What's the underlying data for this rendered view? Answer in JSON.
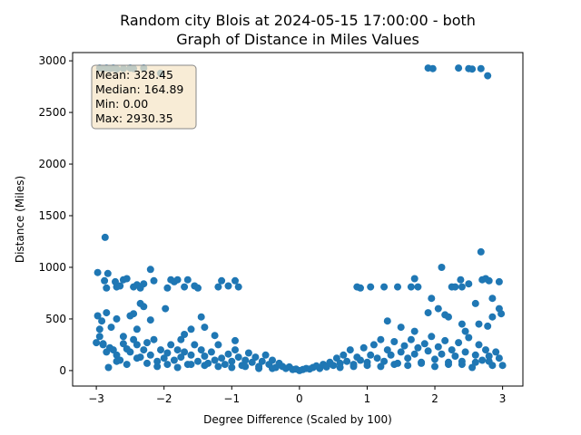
{
  "chart_data": {
    "type": "scatter",
    "title_line1": "Random city Blois at 2024-05-15 17:00:00  - both",
    "title_line2": "Graph of Distance in Miles Values",
    "xlabel": "Degree Difference (Scaled by 100)",
    "ylabel": "Distance (Miles)",
    "xlim": [
      -3.35,
      3.3
    ],
    "ylim": [
      -150,
      3080
    ],
    "xticks": [
      -3,
      -2,
      -1,
      0,
      1,
      2,
      3
    ],
    "xtick_labels": [
      "−3",
      "−2",
      "−1",
      "0",
      "1",
      "2",
      "3"
    ],
    "yticks": [
      0,
      500,
      1000,
      1500,
      2000,
      2500,
      3000
    ],
    "ytick_labels": [
      "0",
      "500",
      "1000",
      "1500",
      "2000",
      "2500",
      "3000"
    ],
    "grid": false,
    "marker_color": "#1f77b4",
    "stats_box": {
      "mean": "Mean: 328.45",
      "median": "Median: 164.89",
      "min": "Min: 0.00",
      "max": "Max: 2930.35",
      "background": "#f5e6c8"
    },
    "series": [
      {
        "points": [
          [
            -2.95,
            2930
          ],
          [
            -2.9,
            2925
          ],
          [
            -2.85,
            2930
          ],
          [
            -2.8,
            2925
          ],
          [
            -2.75,
            2930
          ],
          [
            -2.7,
            2920
          ],
          [
            -2.6,
            2925
          ],
          [
            -2.5,
            2930
          ],
          [
            -2.45,
            2925
          ],
          [
            -2.3,
            2930
          ],
          [
            -2.05,
            2880
          ],
          [
            1.9,
            2930
          ],
          [
            1.97,
            2925
          ],
          [
            2.35,
            2930
          ],
          [
            2.5,
            2925
          ],
          [
            2.55,
            2920
          ],
          [
            2.68,
            2925
          ],
          [
            2.78,
            2855
          ],
          [
            -2.87,
            1290
          ],
          [
            2.68,
            1150
          ],
          [
            2.1,
            1000
          ],
          [
            -2.98,
            950
          ],
          [
            -2.88,
            870
          ],
          [
            -2.83,
            940
          ],
          [
            -2.85,
            800
          ],
          [
            -2.72,
            860
          ],
          [
            -2.7,
            810
          ],
          [
            -2.65,
            820
          ],
          [
            -2.6,
            880
          ],
          [
            -2.55,
            890
          ],
          [
            -2.45,
            810
          ],
          [
            -2.4,
            830
          ],
          [
            -2.35,
            800
          ],
          [
            -2.3,
            840
          ],
          [
            -2.2,
            980
          ],
          [
            -2.15,
            870
          ],
          [
            -1.95,
            800
          ],
          [
            -1.9,
            880
          ],
          [
            -1.85,
            860
          ],
          [
            -1.8,
            880
          ],
          [
            -1.7,
            810
          ],
          [
            -1.65,
            880
          ],
          [
            -1.55,
            820
          ],
          [
            -1.5,
            800
          ],
          [
            -1.2,
            810
          ],
          [
            -1.15,
            870
          ],
          [
            -1.05,
            820
          ],
          [
            -0.95,
            870
          ],
          [
            -0.9,
            810
          ],
          [
            0.85,
            810
          ],
          [
            0.9,
            800
          ],
          [
            1.05,
            810
          ],
          [
            1.25,
            810
          ],
          [
            1.45,
            810
          ],
          [
            1.65,
            810
          ],
          [
            1.7,
            890
          ],
          [
            1.75,
            810
          ],
          [
            1.95,
            700
          ],
          [
            2.25,
            810
          ],
          [
            2.3,
            810
          ],
          [
            2.38,
            880
          ],
          [
            2.4,
            810
          ],
          [
            2.5,
            840
          ],
          [
            2.6,
            650
          ],
          [
            2.7,
            880
          ],
          [
            2.75,
            890
          ],
          [
            2.8,
            870
          ],
          [
            2.85,
            700
          ],
          [
            2.95,
            860
          ],
          [
            -2.98,
            530
          ],
          [
            -2.92,
            480
          ],
          [
            -2.85,
            560
          ],
          [
            -2.7,
            500
          ],
          [
            -2.78,
            420
          ],
          [
            -2.5,
            530
          ],
          [
            -2.45,
            550
          ],
          [
            -2.35,
            650
          ],
          [
            -2.3,
            620
          ],
          [
            -2.2,
            490
          ],
          [
            -1.98,
            600
          ],
          [
            -1.45,
            520
          ],
          [
            -1.4,
            420
          ],
          [
            -1.25,
            340
          ],
          [
            -0.95,
            290
          ],
          [
            -1.6,
            400
          ],
          [
            -1.7,
            350
          ],
          [
            -1.75,
            300
          ],
          [
            -2.4,
            400
          ],
          [
            -2.6,
            330
          ],
          [
            -2.9,
            260
          ],
          [
            -2.95,
            330
          ],
          [
            1.3,
            480
          ],
          [
            1.5,
            420
          ],
          [
            1.7,
            380
          ],
          [
            1.9,
            560
          ],
          [
            2.05,
            600
          ],
          [
            2.15,
            540
          ],
          [
            2.2,
            520
          ],
          [
            2.4,
            450
          ],
          [
            2.45,
            380
          ],
          [
            2.65,
            450
          ],
          [
            2.78,
            430
          ],
          [
            2.85,
            520
          ],
          [
            2.95,
            600
          ],
          [
            2.98,
            550
          ],
          [
            -3.0,
            270
          ],
          [
            -2.95,
            400
          ],
          [
            -2.9,
            250
          ],
          [
            -2.85,
            180
          ],
          [
            -2.8,
            220
          ],
          [
            -2.75,
            200
          ],
          [
            -2.7,
            150
          ],
          [
            -2.65,
            100
          ],
          [
            -2.6,
            260
          ],
          [
            -2.55,
            210
          ],
          [
            -2.5,
            180
          ],
          [
            -2.45,
            300
          ],
          [
            -2.4,
            250
          ],
          [
            -2.35,
            130
          ],
          [
            -2.3,
            200
          ],
          [
            -2.25,
            270
          ],
          [
            -2.2,
            150
          ],
          [
            -2.15,
            300
          ],
          [
            -2.1,
            90
          ],
          [
            -2.05,
            200
          ],
          [
            -2.0,
            120
          ],
          [
            -1.95,
            170
          ],
          [
            -1.9,
            250
          ],
          [
            -1.85,
            100
          ],
          [
            -1.8,
            200
          ],
          [
            -1.75,
            130
          ],
          [
            -1.7,
            180
          ],
          [
            -1.65,
            60
          ],
          [
            -1.6,
            150
          ],
          [
            -1.55,
            250
          ],
          [
            -1.5,
            90
          ],
          [
            -1.45,
            200
          ],
          [
            -1.4,
            140
          ],
          [
            -1.35,
            70
          ],
          [
            -1.3,
            180
          ],
          [
            -1.25,
            100
          ],
          [
            -1.2,
            250
          ],
          [
            -1.15,
            120
          ],
          [
            -1.1,
            60
          ],
          [
            -1.05,
            160
          ],
          [
            -1.0,
            90
          ],
          [
            -0.95,
            200
          ],
          [
            -0.9,
            130
          ],
          [
            -0.85,
            50
          ],
          [
            -0.8,
            100
          ],
          [
            -0.75,
            170
          ],
          [
            -0.7,
            80
          ],
          [
            -0.65,
            130
          ],
          [
            -0.6,
            40
          ],
          [
            -0.55,
            90
          ],
          [
            -0.5,
            150
          ],
          [
            -0.45,
            60
          ],
          [
            -0.4,
            100
          ],
          [
            -0.35,
            30
          ],
          [
            -0.3,
            70
          ],
          [
            -0.25,
            40
          ],
          [
            -0.2,
            20
          ],
          [
            -0.15,
            35
          ],
          [
            -0.1,
            10
          ],
          [
            -0.05,
            15
          ],
          [
            0.0,
            0
          ],
          [
            -2.82,
            30
          ],
          [
            -2.7,
            90
          ],
          [
            -2.55,
            60
          ],
          [
            -2.4,
            120
          ],
          [
            -2.25,
            70
          ],
          [
            -2.1,
            40
          ],
          [
            -1.95,
            60
          ],
          [
            -1.8,
            30
          ],
          [
            -1.6,
            60
          ],
          [
            -1.4,
            50
          ],
          [
            -1.2,
            40
          ],
          [
            -1.0,
            30
          ],
          [
            -0.8,
            40
          ],
          [
            -0.6,
            20
          ],
          [
            -0.4,
            20
          ],
          [
            0.05,
            10
          ],
          [
            0.1,
            20
          ],
          [
            0.15,
            15
          ],
          [
            0.2,
            30
          ],
          [
            0.25,
            45
          ],
          [
            0.3,
            20
          ],
          [
            0.35,
            60
          ],
          [
            0.4,
            35
          ],
          [
            0.45,
            80
          ],
          [
            0.5,
            50
          ],
          [
            0.55,
            120
          ],
          [
            0.6,
            70
          ],
          [
            0.65,
            150
          ],
          [
            0.7,
            90
          ],
          [
            0.75,
            200
          ],
          [
            0.8,
            60
          ],
          [
            0.85,
            130
          ],
          [
            0.9,
            100
          ],
          [
            0.95,
            220
          ],
          [
            1.0,
            80
          ],
          [
            1.05,
            150
          ],
          [
            1.1,
            250
          ],
          [
            1.15,
            120
          ],
          [
            1.2,
            300
          ],
          [
            1.25,
            90
          ],
          [
            1.3,
            200
          ],
          [
            1.35,
            150
          ],
          [
            1.4,
            280
          ],
          [
            1.45,
            70
          ],
          [
            1.5,
            180
          ],
          [
            1.55,
            240
          ],
          [
            1.6,
            120
          ],
          [
            1.65,
            300
          ],
          [
            1.7,
            160
          ],
          [
            1.75,
            220
          ],
          [
            1.8,
            80
          ],
          [
            1.85,
            260
          ],
          [
            1.9,
            190
          ],
          [
            1.95,
            330
          ],
          [
            2.0,
            110
          ],
          [
            2.05,
            230
          ],
          [
            2.1,
            160
          ],
          [
            2.15,
            290
          ],
          [
            2.2,
            60
          ],
          [
            2.25,
            200
          ],
          [
            2.3,
            140
          ],
          [
            2.35,
            270
          ],
          [
            2.4,
            90
          ],
          [
            2.45,
            180
          ],
          [
            2.5,
            320
          ],
          [
            2.55,
            30
          ],
          [
            2.6,
            150
          ],
          [
            2.65,
            250
          ],
          [
            2.7,
            100
          ],
          [
            2.75,
            200
          ],
          [
            2.8,
            140
          ],
          [
            2.85,
            50
          ],
          [
            2.9,
            180
          ],
          [
            2.95,
            120
          ],
          [
            3.0,
            50
          ],
          [
            0.6,
            30
          ],
          [
            0.8,
            40
          ],
          [
            1.0,
            50
          ],
          [
            1.2,
            40
          ],
          [
            1.4,
            60
          ],
          [
            1.6,
            50
          ],
          [
            1.8,
            70
          ],
          [
            2.0,
            40
          ],
          [
            2.2,
            80
          ],
          [
            2.4,
            60
          ],
          [
            2.6,
            80
          ],
          [
            2.8,
            90
          ]
        ]
      }
    ]
  }
}
